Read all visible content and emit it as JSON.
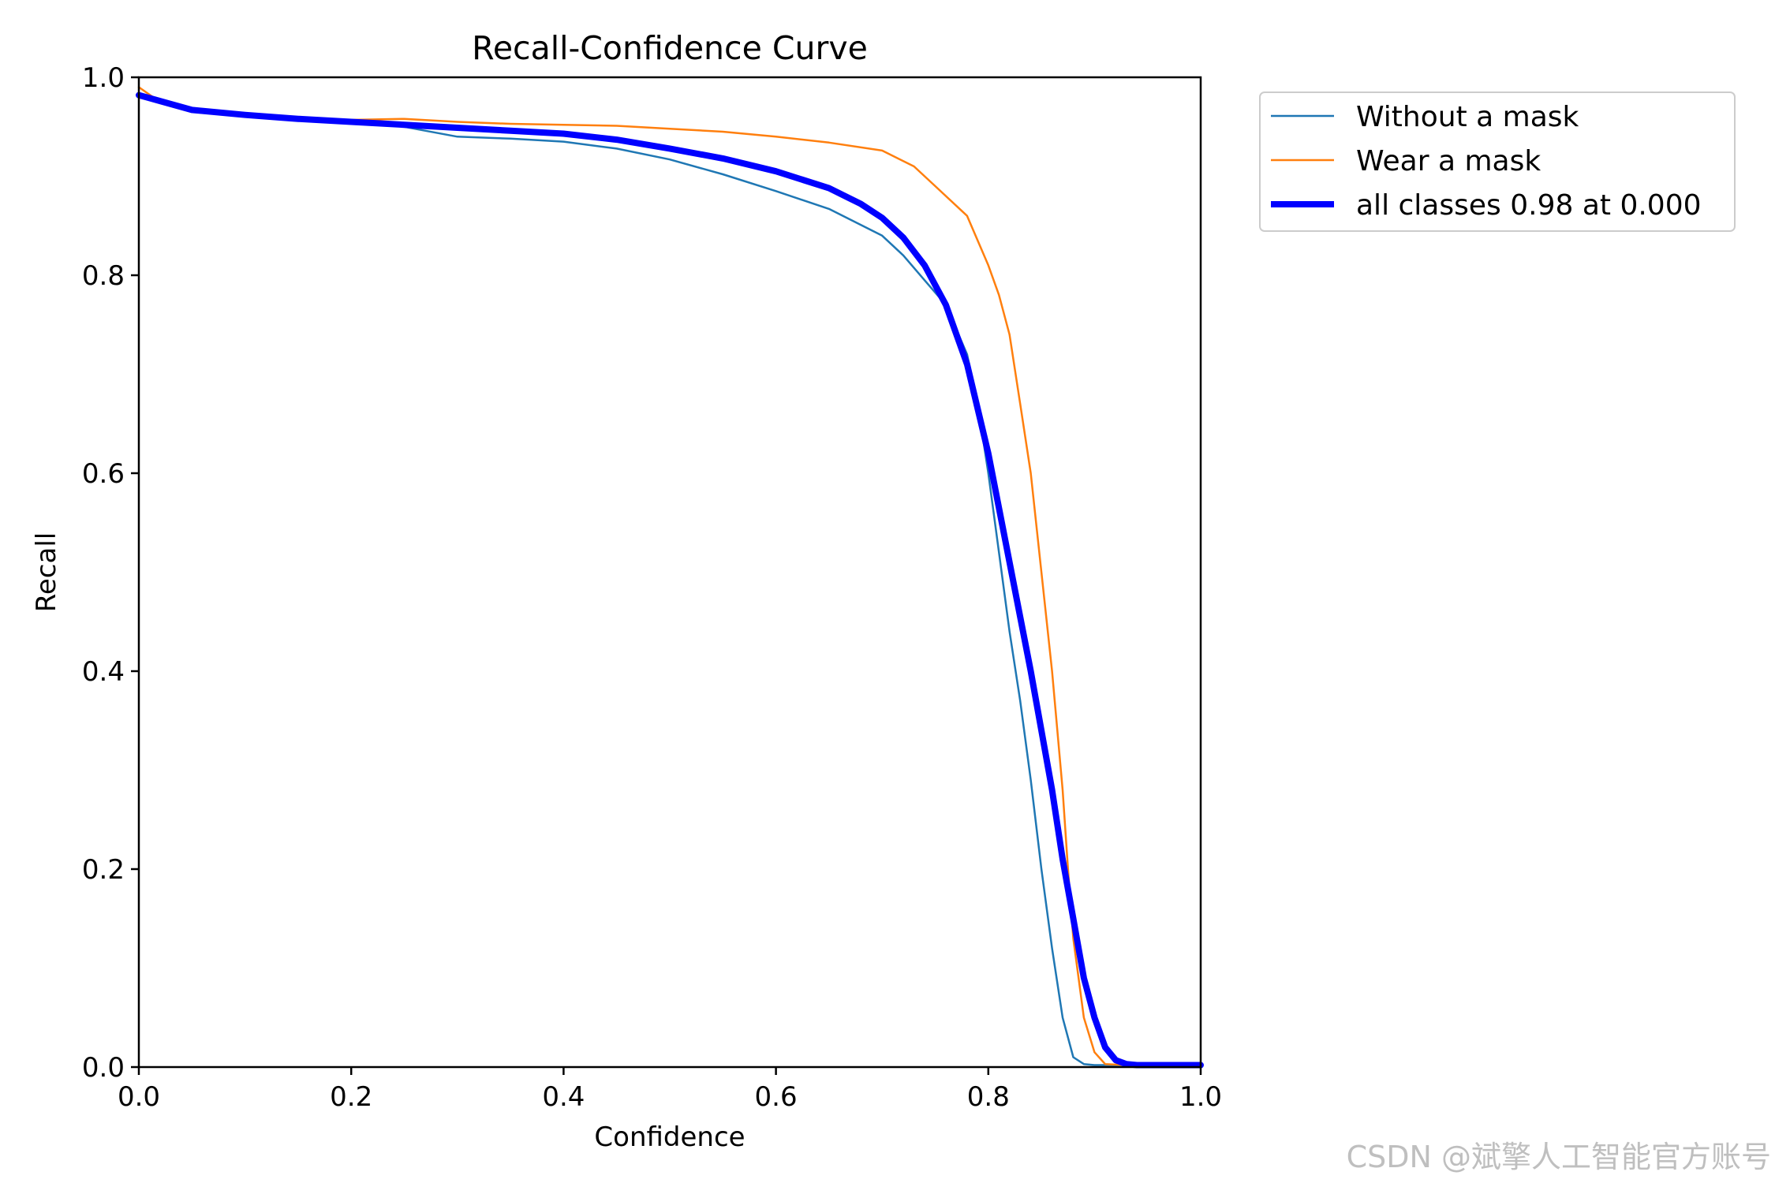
{
  "chart_data": {
    "type": "line",
    "title": "Recall-Confidence Curve",
    "xlabel": "Confidence",
    "ylabel": "Recall",
    "xlim": [
      0,
      1
    ],
    "ylim": [
      0,
      1
    ],
    "xticks": [
      "0.0",
      "0.2",
      "0.4",
      "0.6",
      "0.8",
      "1.0"
    ],
    "yticks": [
      "0.0",
      "0.2",
      "0.4",
      "0.6",
      "0.8",
      "1.0"
    ],
    "grid": false,
    "legend_position": "outside-top-right",
    "series": [
      {
        "name": "Without a mask",
        "color": "#1f77b4",
        "x": [
          0.0,
          0.02,
          0.05,
          0.1,
          0.15,
          0.2,
          0.25,
          0.3,
          0.35,
          0.4,
          0.45,
          0.5,
          0.55,
          0.6,
          0.65,
          0.7,
          0.72,
          0.74,
          0.76,
          0.78,
          0.79,
          0.8,
          0.81,
          0.82,
          0.83,
          0.84,
          0.85,
          0.86,
          0.87,
          0.88,
          0.89,
          0.9,
          0.93,
          1.0
        ],
        "y": [
          0.98,
          0.975,
          0.966,
          0.962,
          0.958,
          0.954,
          0.95,
          0.94,
          0.938,
          0.935,
          0.928,
          0.917,
          0.902,
          0.885,
          0.867,
          0.84,
          0.82,
          0.795,
          0.77,
          0.72,
          0.67,
          0.6,
          0.52,
          0.44,
          0.37,
          0.29,
          0.2,
          0.12,
          0.05,
          0.01,
          0.003,
          0.002,
          0.002,
          0.002
        ]
      },
      {
        "name": "Wear a mask",
        "color": "#ff7f0e",
        "x": [
          0.0,
          0.02,
          0.05,
          0.1,
          0.15,
          0.2,
          0.25,
          0.3,
          0.35,
          0.4,
          0.45,
          0.5,
          0.55,
          0.6,
          0.65,
          0.7,
          0.73,
          0.75,
          0.78,
          0.8,
          0.81,
          0.82,
          0.83,
          0.84,
          0.85,
          0.86,
          0.87,
          0.875,
          0.88,
          0.89,
          0.9,
          0.91,
          0.93,
          1.0
        ],
        "y": [
          0.99,
          0.975,
          0.967,
          0.962,
          0.958,
          0.957,
          0.958,
          0.955,
          0.953,
          0.952,
          0.951,
          0.948,
          0.945,
          0.94,
          0.934,
          0.926,
          0.91,
          0.89,
          0.86,
          0.81,
          0.78,
          0.74,
          0.67,
          0.6,
          0.5,
          0.4,
          0.28,
          0.2,
          0.13,
          0.05,
          0.015,
          0.003,
          0.002,
          0.002
        ]
      },
      {
        "name": "all classes 0.98 at 0.000",
        "color": "#0000ff",
        "x": [
          0.0,
          0.02,
          0.05,
          0.1,
          0.15,
          0.2,
          0.25,
          0.3,
          0.35,
          0.4,
          0.45,
          0.5,
          0.55,
          0.6,
          0.65,
          0.68,
          0.7,
          0.72,
          0.74,
          0.76,
          0.78,
          0.8,
          0.82,
          0.84,
          0.86,
          0.87,
          0.88,
          0.89,
          0.9,
          0.91,
          0.92,
          0.93,
          0.94,
          1.0
        ],
        "y": [
          0.982,
          0.976,
          0.967,
          0.962,
          0.958,
          0.955,
          0.952,
          0.949,
          0.946,
          0.943,
          0.937,
          0.928,
          0.918,
          0.905,
          0.888,
          0.872,
          0.858,
          0.838,
          0.81,
          0.77,
          0.71,
          0.62,
          0.51,
          0.4,
          0.28,
          0.21,
          0.15,
          0.09,
          0.05,
          0.02,
          0.007,
          0.003,
          0.002,
          0.002
        ]
      }
    ],
    "watermark": "CSDN @斌擎人工智能官方账号"
  }
}
